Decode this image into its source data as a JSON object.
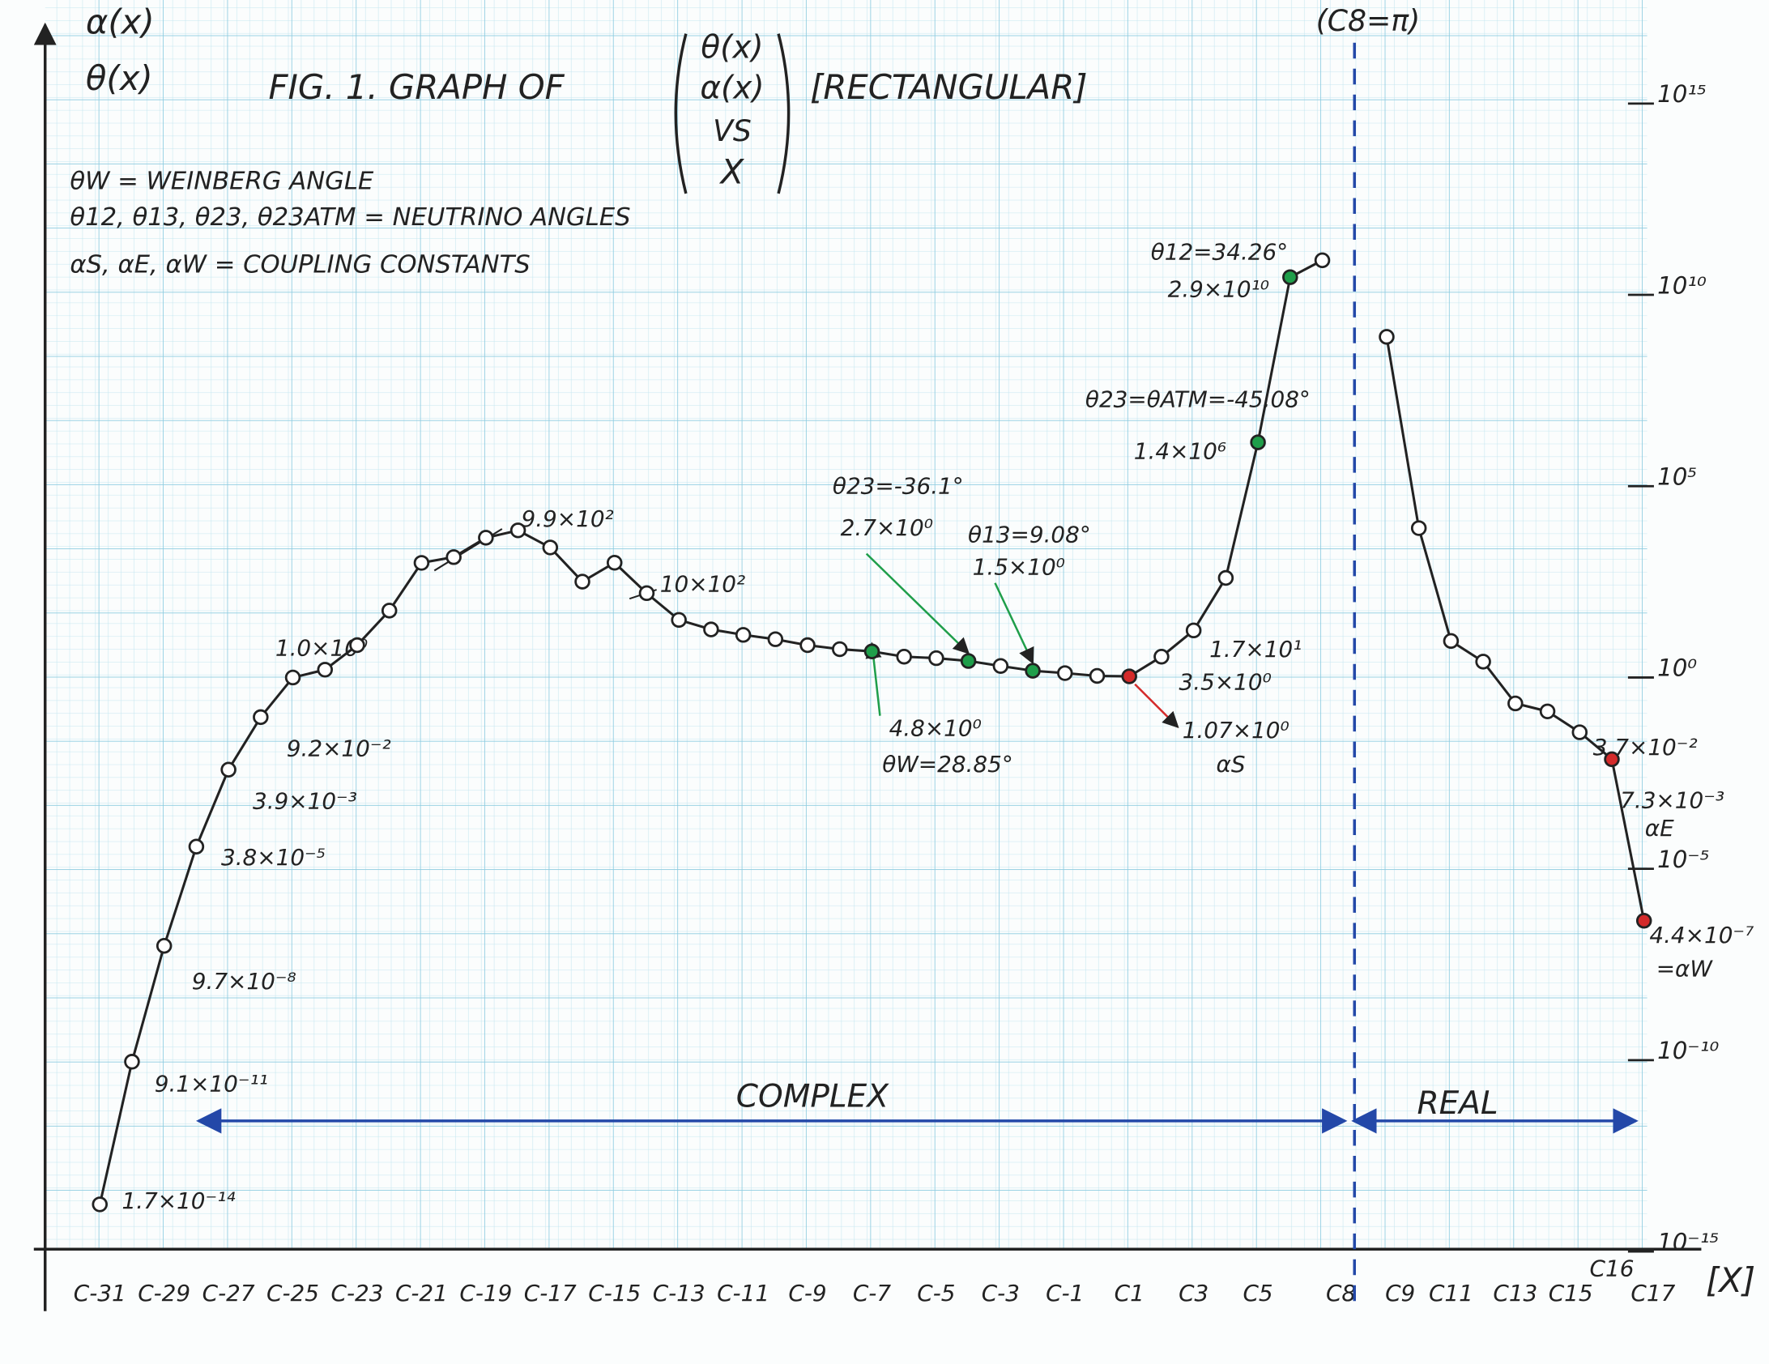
{
  "chart_data": {
    "type": "line",
    "title": "FIG. 1. GRAPH OF",
    "title_matrix": [
      "θ(x)",
      "α(x)",
      "VS",
      "X"
    ],
    "title_suffix": "[RECTANGULAR]",
    "y_label": [
      "α(x)",
      "θ(x)"
    ],
    "x_label": "[X]",
    "notes": [
      {
        "text": "θW = WEINBERG ANGLE",
        "color": "#1f9e4a"
      },
      {
        "text": "θ12, θ13, θ23, θ23ATM = NEUTRINO ANGLES",
        "color": "#1f9e4a"
      },
      {
        "text": "αS, αE, αW = COUPLING CONSTANTS",
        "color": "#d42a2a"
      }
    ],
    "region_labels": [
      "COMPLEX",
      "REAL"
    ],
    "region_color": "#2348a8",
    "asymptote": {
      "x": 8,
      "label": "(C8=π)",
      "color": "#2348a8"
    },
    "x": [
      -31,
      -30,
      -29,
      -28,
      -27,
      -26,
      -25,
      -24,
      -23,
      -22,
      -21,
      -20,
      -19,
      -18,
      -17,
      -16,
      -15,
      -14,
      -13,
      -12,
      -11,
      -10,
      -9,
      -8,
      -7,
      -6,
      -5,
      -4,
      -3,
      -2,
      -1,
      0,
      1,
      2,
      3,
      4,
      5,
      6,
      7,
      8,
      9,
      10,
      11,
      12,
      13,
      14,
      15,
      16,
      17
    ],
    "series": [
      {
        "color": "#222222",
        "values": [
          1.7e-14,
          9.1e-11,
          9.7e-08,
          3.8e-05,
          0.0039,
          0.092,
          1.0,
          1.6,
          7,
          56,
          990,
          1400,
          4500,
          7000,
          2500,
          320,
          1000,
          160,
          32,
          18,
          13,
          10,
          7,
          5.5,
          4.8,
          3.5,
          3.2,
          2.7,
          2,
          1.5,
          1.3,
          1.1,
          1.07,
          3.5,
          17,
          400,
          1400000,
          29000000000,
          80000000000,
          null,
          800000000,
          8000,
          9,
          2.6,
          0.21,
          0.13,
          0.037,
          0.0073,
          4.4e-07
        ],
        "value_labels": [
          "1.7×10⁻¹⁴",
          "9.1×10⁻¹¹",
          "9.7×10⁻⁸",
          "3.8×10⁻⁵",
          "3.9×10⁻³",
          "9.2×10⁻²",
          "1.0×10⁰",
          null,
          null,
          null,
          "9.9×10²",
          null,
          null,
          null,
          null,
          null,
          "10×10²",
          null,
          null,
          null,
          null,
          null,
          null,
          null,
          "4.8×10⁰",
          null,
          null,
          "2.7×10⁰",
          null,
          "1.5×10⁰",
          null,
          null,
          "1.07×10⁰",
          "3.5×10⁰",
          "1.7×10¹",
          null,
          "1.4×10⁶",
          "2.9×10¹⁰",
          null,
          null,
          null,
          null,
          null,
          null,
          null,
          null,
          "3.7×10⁻²",
          "7.3×10⁻³",
          "4.4×10⁻⁷"
        ],
        "point_notes": [
          null,
          null,
          null,
          null,
          null,
          null,
          null,
          null,
          null,
          null,
          null,
          null,
          null,
          null,
          null,
          null,
          null,
          null,
          null,
          null,
          null,
          null,
          null,
          null,
          "θW=28.85°",
          null,
          null,
          "θ23=-36.1°",
          null,
          "θ13=9.08°",
          null,
          null,
          "αS",
          null,
          null,
          null,
          "θ23=θATM=-45.08°",
          "θ12=34.26°",
          null,
          null,
          null,
          null,
          null,
          null,
          null,
          null,
          null,
          "αE",
          "=αW"
        ],
        "marker_colors": [
          "#ffffff",
          "#ffffff",
          "#ffffff",
          "#ffffff",
          "#ffffff",
          "#ffffff",
          "#ffffff",
          "#ffffff",
          "#ffffff",
          "#ffffff",
          "#ffffff",
          "#ffffff",
          "#ffffff",
          "#ffffff",
          "#ffffff",
          "#ffffff",
          "#ffffff",
          "#ffffff",
          "#ffffff",
          "#ffffff",
          "#ffffff",
          "#ffffff",
          "#ffffff",
          "#ffffff",
          "#1f9e4a",
          "#ffffff",
          "#ffffff",
          "#1f9e4a",
          "#ffffff",
          "#1f9e4a",
          "#ffffff",
          "#ffffff",
          "#d42a2a",
          "#ffffff",
          "#ffffff",
          "#ffffff",
          "#1f9e4a",
          "#1f9e4a",
          "#ffffff",
          "#ffffff",
          "#ffffff",
          "#ffffff",
          "#ffffff",
          "#ffffff",
          "#ffffff",
          "#ffffff",
          "#ffffff",
          "#d42a2a",
          "#d42a2a"
        ]
      }
    ],
    "xlim": [
      -32.7,
      18.5
    ],
    "xticks": [
      {
        "value": -31,
        "label": "C-31"
      },
      {
        "value": -29,
        "label": "C-29"
      },
      {
        "value": -27,
        "label": "C-27"
      },
      {
        "value": -25,
        "label": "C-25"
      },
      {
        "value": -23,
        "label": "C-23"
      },
      {
        "value": -21,
        "label": "C-21"
      },
      {
        "value": -19,
        "label": "C-19"
      },
      {
        "value": -17,
        "label": "C-17"
      },
      {
        "value": -15,
        "label": "C-15"
      },
      {
        "value": -13,
        "label": "C-13"
      },
      {
        "value": -11,
        "label": "C-11"
      },
      {
        "value": -9,
        "label": "C-9"
      },
      {
        "value": -7,
        "label": "C-7"
      },
      {
        "value": -5,
        "label": "C-5"
      },
      {
        "value": -3,
        "label": "C-3"
      },
      {
        "value": -1,
        "label": "C-1"
      },
      {
        "value": 1,
        "label": "C1"
      },
      {
        "value": 3,
        "label": "C3"
      },
      {
        "value": 5,
        "label": "C5"
      },
      {
        "value": 8,
        "label": "C8"
      },
      {
        "value": 9,
        "label": "C9"
      },
      {
        "value": 11,
        "label": "C11"
      },
      {
        "value": 13,
        "label": "C13"
      },
      {
        "value": 15,
        "label": "C15"
      },
      {
        "value": 16,
        "label": "C16"
      },
      {
        "value": 17,
        "label": "C17"
      }
    ],
    "ylim": [
      1e-15,
      1e+17
    ],
    "yticks": [
      {
        "value": 1000000000000000.0,
        "label": "10¹⁵"
      },
      {
        "value": 10000000000.0,
        "label": "10¹⁰"
      },
      {
        "value": 100000.0,
        "label": "10⁵"
      },
      {
        "value": 1,
        "label": "10⁰"
      },
      {
        "value": 1e-05,
        "label": "10⁻⁵"
      },
      {
        "value": 1e-10,
        "label": "10⁻¹⁰"
      },
      {
        "value": 1e-15,
        "label": "10⁻¹⁵"
      }
    ],
    "log_y": true,
    "grid": true
  }
}
